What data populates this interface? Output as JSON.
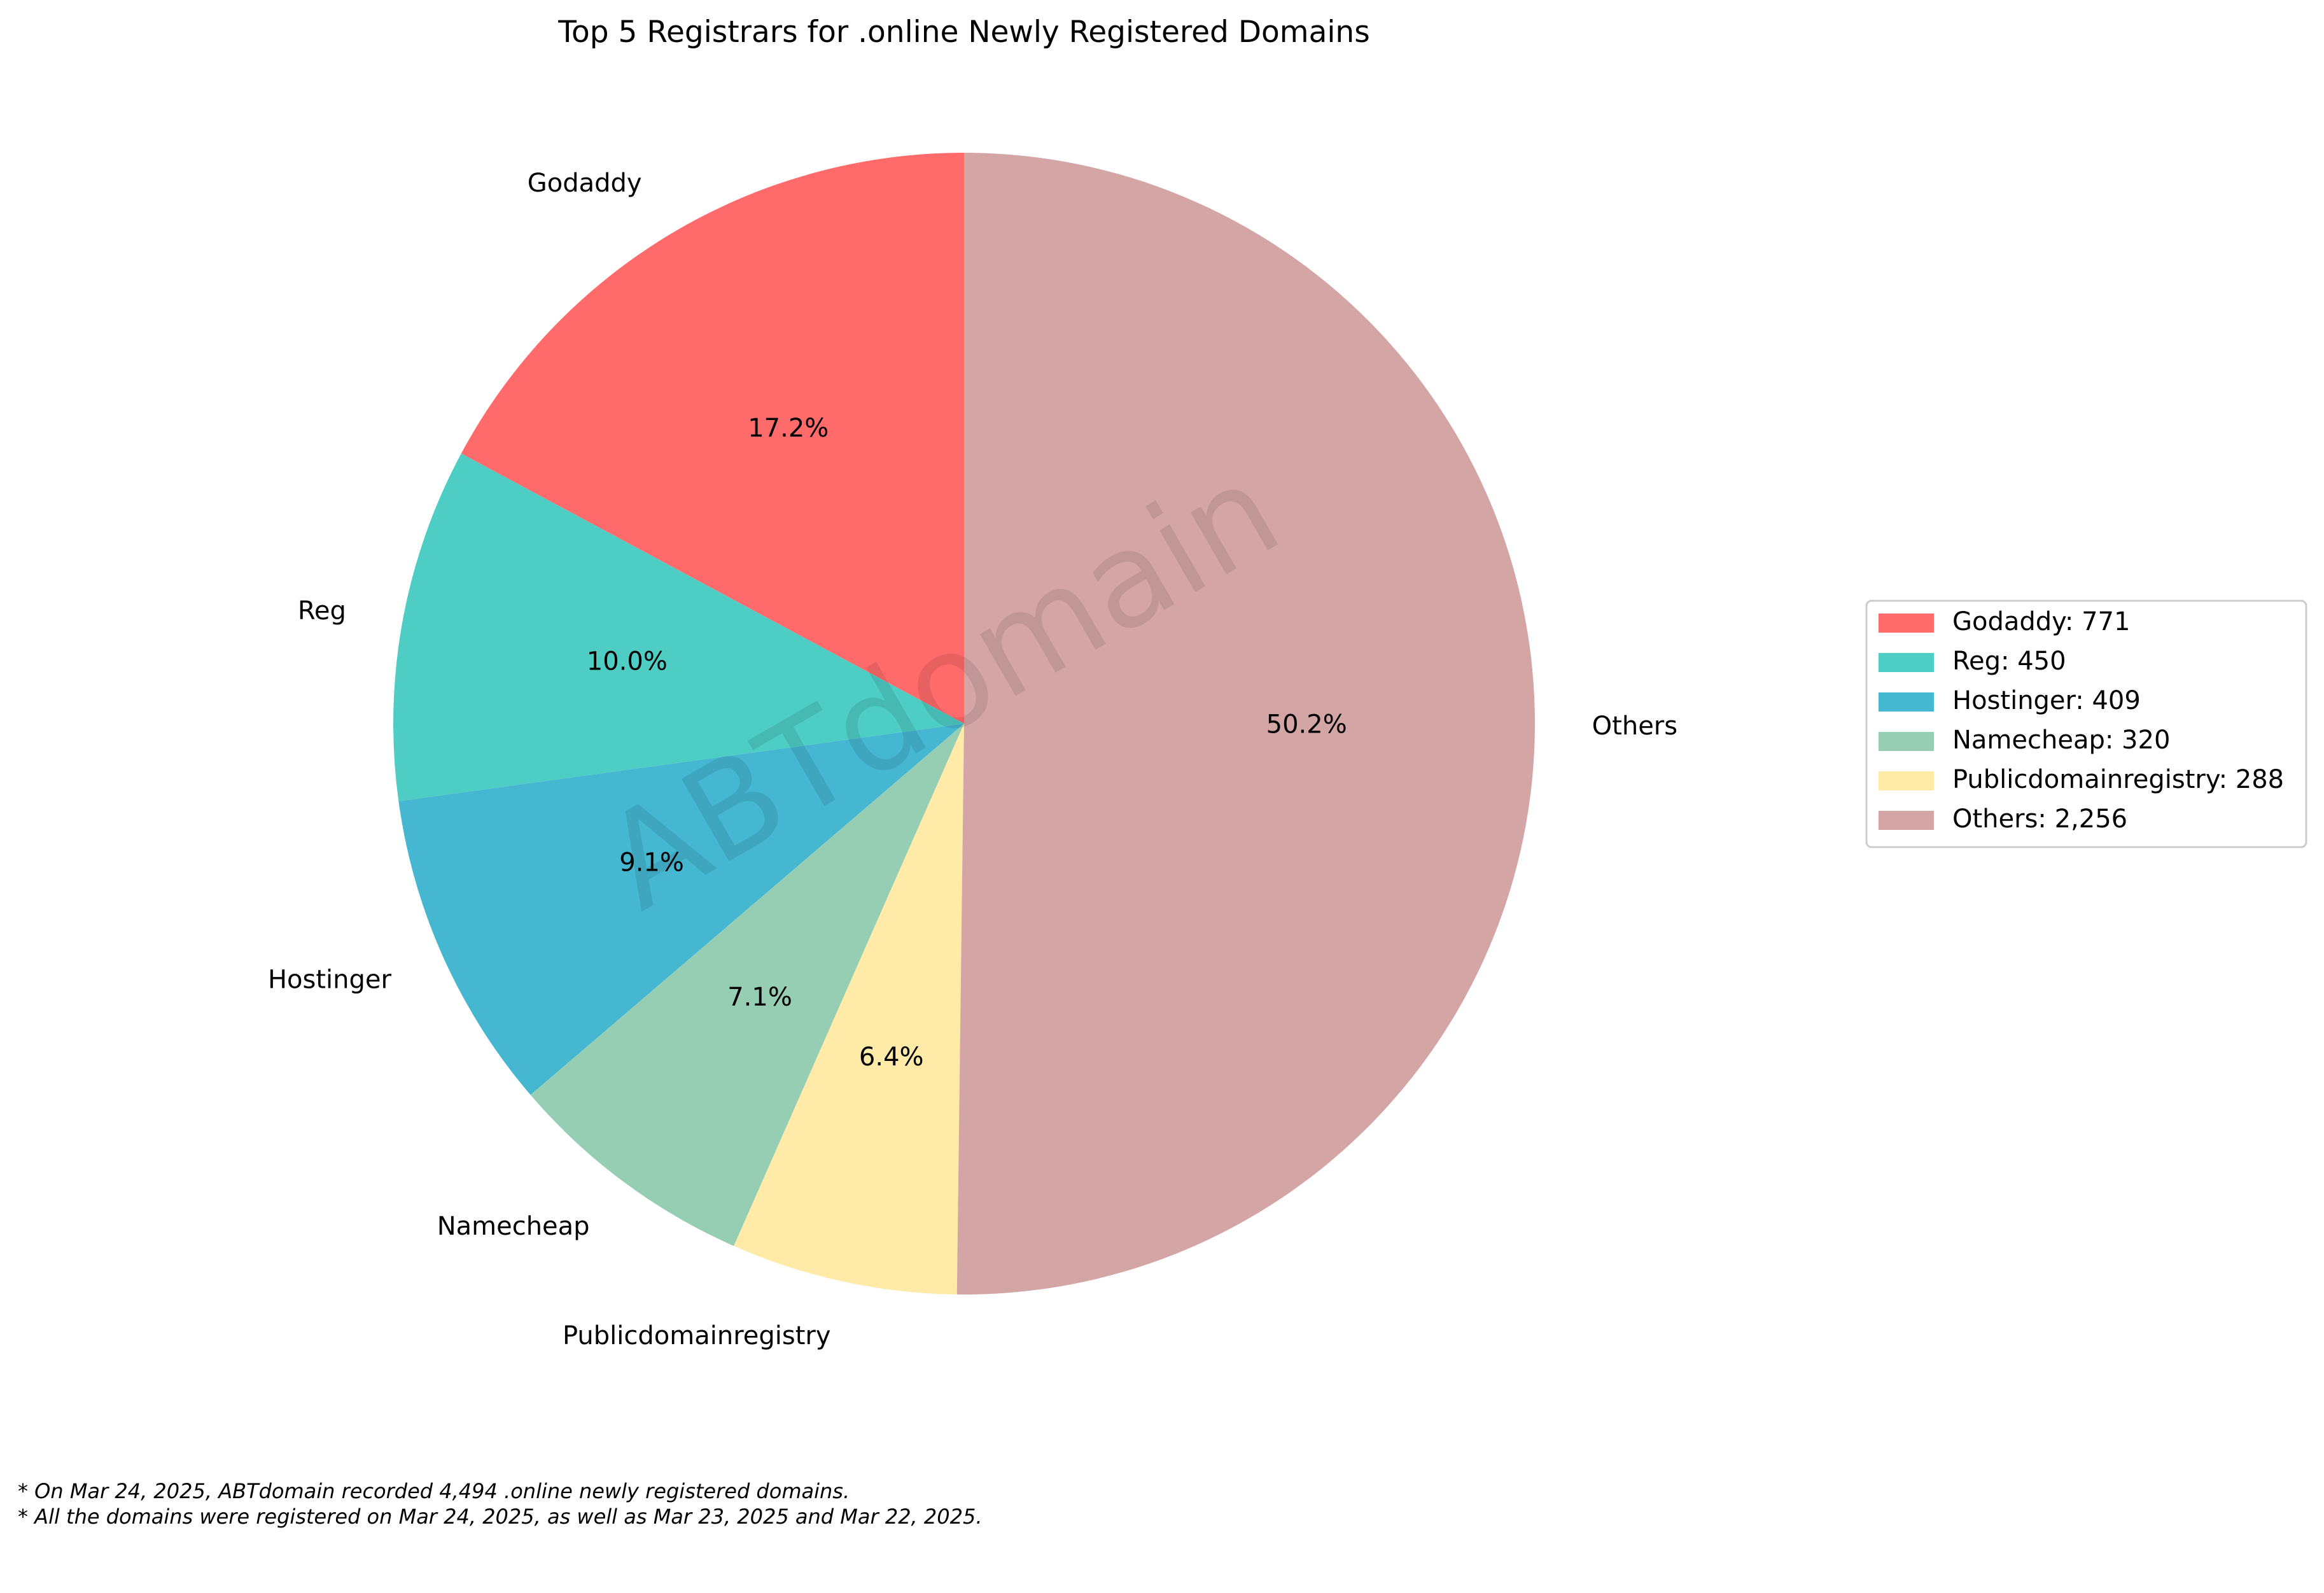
{
  "chart_data": {
    "type": "pie",
    "title": "Top 5 Registrars for .online Newly Registered Domains",
    "slices": [
      {
        "label": "Godaddy",
        "value": 771,
        "pct": "17.2%",
        "legend": "Godaddy: 771",
        "color": "#FF6B6B"
      },
      {
        "label": "Reg",
        "value": 450,
        "pct": "10.0%",
        "legend": "Reg: 450",
        "color": "#4ECDC4"
      },
      {
        "label": "Hostinger",
        "value": 409,
        "pct": "9.1%",
        "legend": "Hostinger: 409",
        "color": "#45B7D1"
      },
      {
        "label": "Namecheap",
        "value": 320,
        "pct": "7.1%",
        "legend": "Namecheap: 320",
        "color": "#96CEB4"
      },
      {
        "label": "Publicdomainregistry",
        "value": 288,
        "pct": "6.4%",
        "legend": "Publicdomainregistry: 288",
        "color": "#FFEAA7"
      },
      {
        "label": "Others",
        "value": 2256,
        "pct": "50.2%",
        "legend": "Others: 2,256",
        "color": "#D4A5A5"
      }
    ],
    "start_angle_deg": 90,
    "direction": "counterclockwise",
    "legend_position": "right"
  },
  "watermark": "ABTdomain",
  "footnotes": [
    "* On Mar 24, 2025, ABTdomain recorded 4,494 .online newly registered domains.",
    "* All the domains were registered on Mar 24, 2025, as well as Mar 23, 2025 and Mar 22, 2025."
  ]
}
